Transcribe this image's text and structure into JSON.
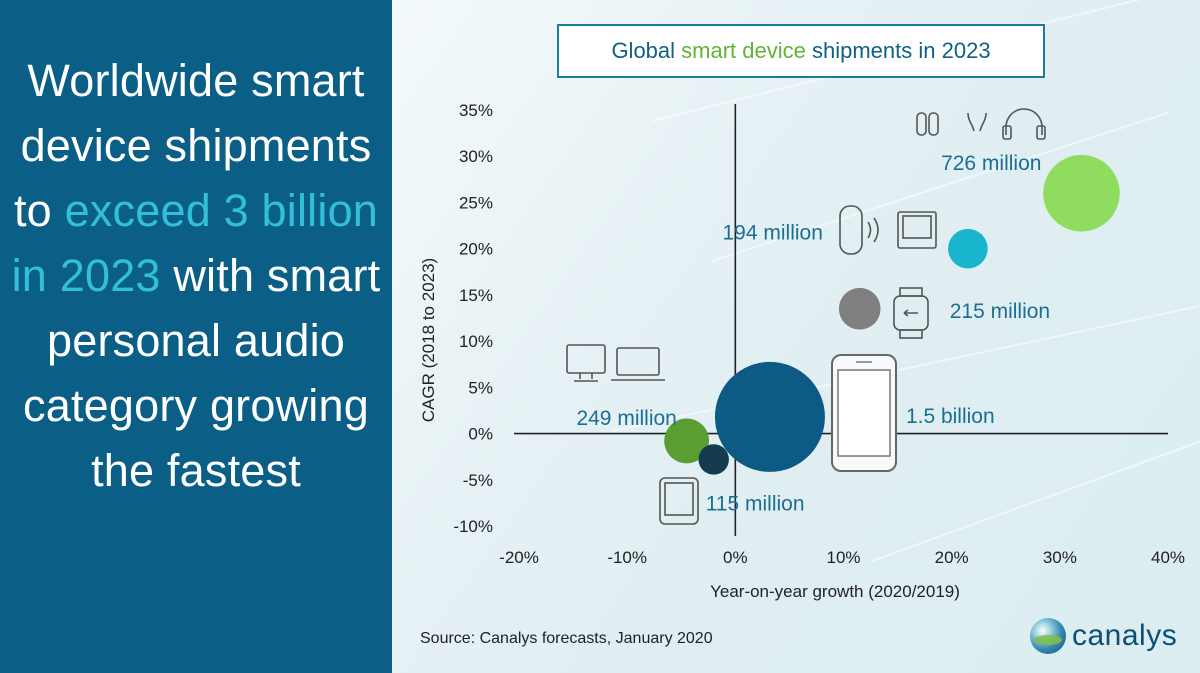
{
  "headline": {
    "part1": "Worldwide smart device shipments to",
    "highlight": "exceed 3 billion in 2023",
    "part2": "with smart personal audio category growing the fastest"
  },
  "title": {
    "part1": "Global",
    "highlight": "smart device",
    "part2": "shipments in 2023"
  },
  "source": "Source:  Canalys forecasts, January 2020",
  "logo": {
    "text": "canalys",
    "icon": "globe-icon"
  },
  "colors": {
    "left_panel": "#0b5f86",
    "highlight": "#32c0d8",
    "bubble_audio": "#8fdc5f",
    "bubble_speaker": "#19b5cf",
    "bubble_wearable": "#7f7f7f",
    "bubble_smartphone": "#0d5a85",
    "bubble_pc": "#5a9e33",
    "bubble_tablet": "#153b4f",
    "label": "#1a6f93"
  },
  "chart_data": {
    "type": "scatter",
    "title": "Global smart device shipments in 2023",
    "xlabel": "Year-on-year growth (2020/2019)",
    "ylabel": "CAGR (2018 to 2023)",
    "xlim": [
      -20,
      40
    ],
    "ylim": [
      -10,
      35
    ],
    "xticks": [
      "-20%",
      "-10%",
      "0%",
      "10%",
      "20%",
      "30%",
      "40%"
    ],
    "yticks": [
      "35%",
      "30%",
      "25%",
      "20%",
      "15%",
      "10%",
      "5%",
      "0%",
      "-5%",
      "-10%"
    ],
    "series": [
      {
        "category": "Smart personal audio",
        "x": 32,
        "y": 26,
        "size": 726,
        "label": "726 million",
        "color": "#8fdc5f"
      },
      {
        "category": "Smart speakers",
        "x": 21.5,
        "y": 20,
        "size": 194,
        "label": "194 million",
        "color": "#19b5cf"
      },
      {
        "category": "Wearables",
        "x": 11.5,
        "y": 13.5,
        "size": 215,
        "label": "215 million",
        "color": "#7f7f7f"
      },
      {
        "category": "Smartphones",
        "x": 3.2,
        "y": 1.8,
        "size": 1500,
        "label": "1.5 billion",
        "color": "#0d5a85"
      },
      {
        "category": "PCs",
        "x": -4.5,
        "y": -0.8,
        "size": 249,
        "label": "249 million",
        "color": "#5a9e33"
      },
      {
        "category": "Tablets",
        "x": -2,
        "y": -2.8,
        "size": 115,
        "label": "115 million",
        "color": "#153b4f"
      }
    ],
    "grid": false,
    "legend": "none"
  }
}
